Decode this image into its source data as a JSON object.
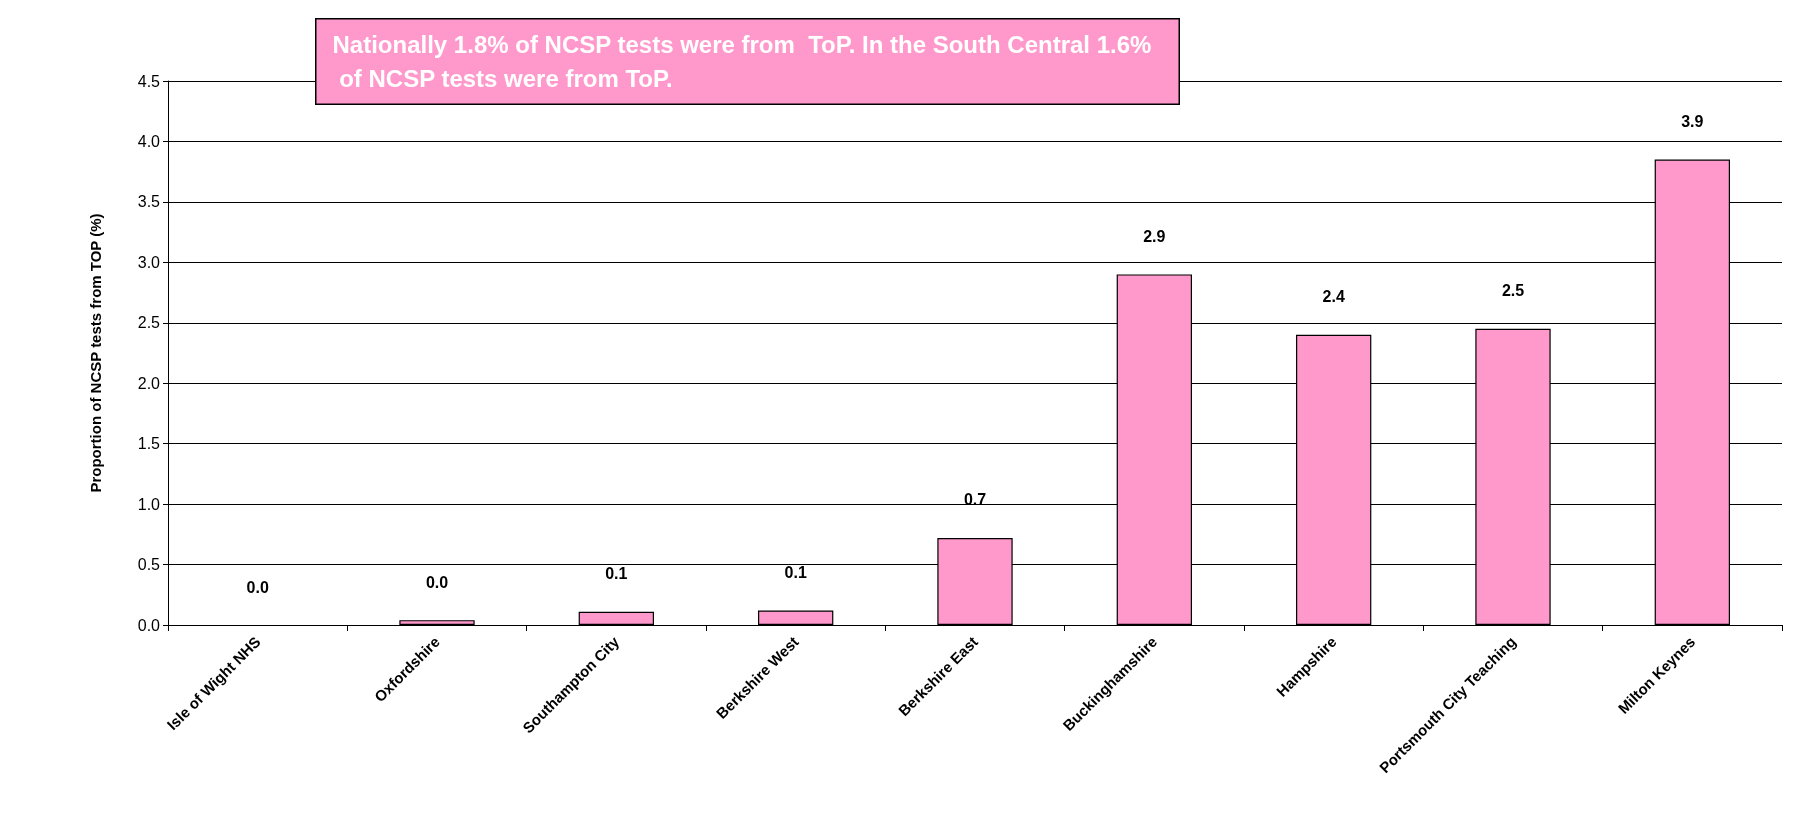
{
  "chart_data": {
    "type": "bar",
    "ylabel": "Proportion of NCSP tests from TOP (%)",
    "categories": [
      "Isle of Wight NHS",
      "Oxfordshire",
      "Southampton City",
      "Berkshire West",
      "Berkshire East",
      "Buckinghamshire",
      "Hampshire",
      "Portsmouth City Teaching",
      "Milton Keynes"
    ],
    "values": [
      0,
      0.04,
      0.11,
      0.12,
      0.72,
      2.9,
      2.4,
      2.45,
      3.85
    ],
    "value_labels": [
      "0.0",
      "0.0",
      "0.1",
      "0.1",
      "0.7",
      "2.9",
      "2.4",
      "2.5",
      "3.9"
    ],
    "color": "#ff99cc",
    "annotations": [
      "Nationally 1.8% of NCSP tests were from  ToP. In the South Central 1.6% of NCSP tests were from ToP."
    ],
    "ylim": [
      0,
      4.5
    ],
    "yticks": [
      {
        "value": 0,
        "label": "0.0"
      },
      0.5,
      {
        "value": 1,
        "label": "1.0"
      },
      1.5,
      {
        "value": 2,
        "label": "2.0"
      },
      2.5,
      {
        "value": 3,
        "label": "3.0"
      },
      3.5,
      {
        "value": 4,
        "label": "4.0"
      },
      4.5
    ],
    "grid": "y"
  }
}
